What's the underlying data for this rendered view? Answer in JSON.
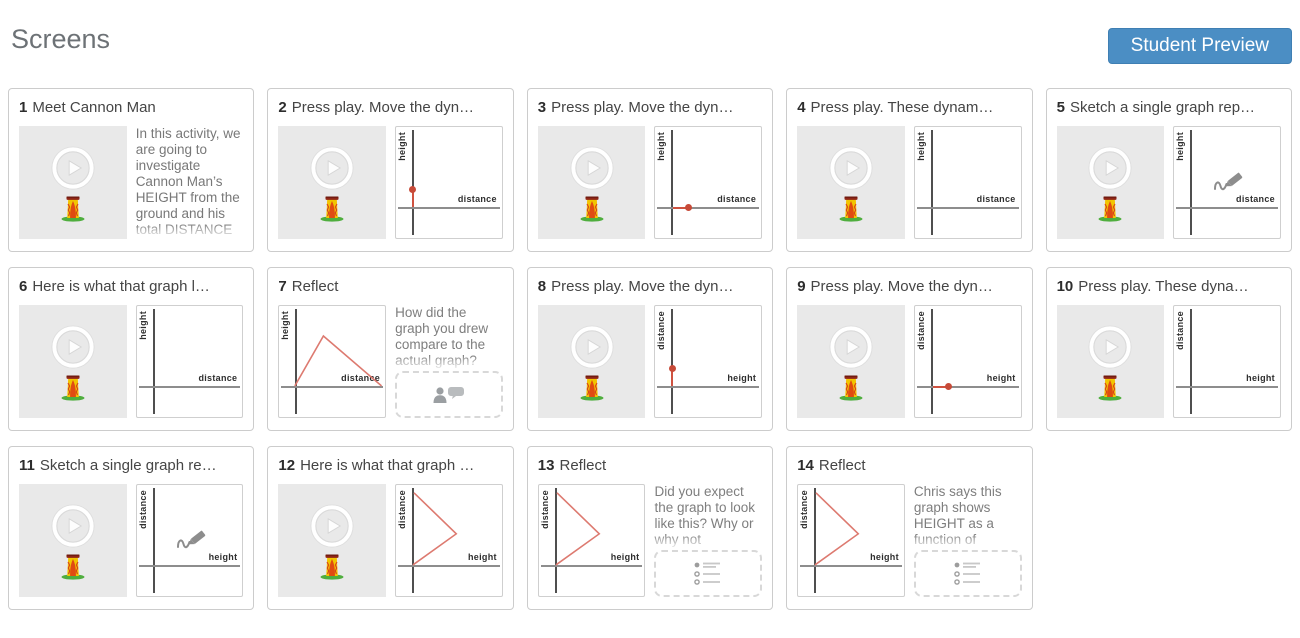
{
  "header": {
    "title": "Screens",
    "preview_button_label": "Student Preview"
  },
  "colors": {
    "accent_blue": "#4b8ec4",
    "curve_red": "#dd7a70",
    "point_red": "#c74a38",
    "axis_dark": "#4f4f4f",
    "axis_gray": "#8d8d8d",
    "thumb_gray": "#e9e9e9"
  },
  "icon_names": [
    "play-icon",
    "cannon-man-icon",
    "pencil-sketch-icon",
    "discussion-icon",
    "multiple-choice-icon"
  ],
  "cards": [
    {
      "number": "1",
      "title": "Meet Cannon Man",
      "left": {
        "kind": "video"
      },
      "right": {
        "kind": "text",
        "text": "In this activity, we are going to investigate Cannon Man’s HEIGHT from the ground and his total DISTANCE"
      }
    },
    {
      "number": "2",
      "title": "Press play. Move the dyn…",
      "left": {
        "kind": "video"
      },
      "right": {
        "kind": "graph",
        "ylabel": "height",
        "xlabel": "distance",
        "mark": "point-y"
      }
    },
    {
      "number": "3",
      "title": "Press play. Move the dyn…",
      "left": {
        "kind": "video"
      },
      "right": {
        "kind": "graph",
        "ylabel": "height",
        "xlabel": "distance",
        "mark": "point-x"
      }
    },
    {
      "number": "4",
      "title": "Press play. These dynam…",
      "left": {
        "kind": "video"
      },
      "right": {
        "kind": "graph",
        "ylabel": "height",
        "xlabel": "distance",
        "mark": "none"
      }
    },
    {
      "number": "5",
      "title": "Sketch a single graph rep…",
      "left": {
        "kind": "video"
      },
      "right": {
        "kind": "graph",
        "ylabel": "height",
        "xlabel": "distance",
        "mark": "sketch"
      }
    },
    {
      "number": "6",
      "title": "Here is what that graph l…",
      "left": {
        "kind": "video"
      },
      "right": {
        "kind": "graph",
        "ylabel": "height",
        "xlabel": "distance",
        "mark": "none"
      }
    },
    {
      "number": "7",
      "title": "Reflect",
      "left": {
        "kind": "graph",
        "ylabel": "height",
        "xlabel": "distance",
        "mark": "triangle"
      },
      "right": {
        "kind": "prompt",
        "text": "How did the graph you drew compare to the actual graph?",
        "icon": "discussion"
      }
    },
    {
      "number": "8",
      "title": "Press play. Move the dyn…",
      "left": {
        "kind": "video"
      },
      "right": {
        "kind": "graph",
        "ylabel": "distance",
        "xlabel": "height",
        "mark": "point-y"
      }
    },
    {
      "number": "9",
      "title": "Press play. Move the dyn…",
      "left": {
        "kind": "video"
      },
      "right": {
        "kind": "graph",
        "ylabel": "distance",
        "xlabel": "height",
        "mark": "point-x"
      }
    },
    {
      "number": "10",
      "title": "Press play. These dyna…",
      "left": {
        "kind": "video"
      },
      "right": {
        "kind": "graph",
        "ylabel": "distance",
        "xlabel": "height",
        "mark": "none"
      }
    },
    {
      "number": "11",
      "title": "Sketch a single graph re…",
      "left": {
        "kind": "video"
      },
      "right": {
        "kind": "graph",
        "ylabel": "distance",
        "xlabel": "height",
        "mark": "sketch"
      }
    },
    {
      "number": "12",
      "title": "Here is what that graph …",
      "left": {
        "kind": "video"
      },
      "right": {
        "kind": "graph",
        "ylabel": "distance",
        "xlabel": "height",
        "mark": "sideV"
      }
    },
    {
      "number": "13",
      "title": "Reflect",
      "left": {
        "kind": "graph",
        "ylabel": "distance",
        "xlabel": "height",
        "mark": "sideV"
      },
      "right": {
        "kind": "prompt",
        "text": "Did you expect the graph to look like this? Why or why not",
        "icon": "choice"
      }
    },
    {
      "number": "14",
      "title": "Reflect",
      "left": {
        "kind": "graph",
        "ylabel": "distance",
        "xlabel": "height",
        "mark": "sideV"
      },
      "right": {
        "kind": "prompt",
        "text": "Chris says this graph shows HEIGHT as a function of",
        "icon": "choice"
      }
    }
  ]
}
